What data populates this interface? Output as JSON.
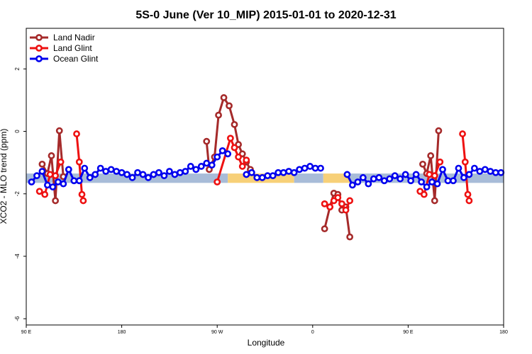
{
  "chart_data": {
    "type": "line",
    "title": "5S-0 June (Ver 10_MIP)   2015-01-01 to 2020-12-31",
    "xlabel": "Longitude",
    "ylabel": "XCO2 - MLO trend (ppm)",
    "xlim": [
      0,
      360
    ],
    "ylim": [
      -6.2,
      3.3
    ],
    "x_ticks": [
      {
        "value": 0,
        "label": "90 E"
      },
      {
        "value": 72,
        "label": "180"
      },
      {
        "value": 144,
        "label": "90 W"
      },
      {
        "value": 216,
        "label": "0"
      },
      {
        "value": 288,
        "label": "90 E"
      },
      {
        "value": 360,
        "label": "180"
      }
    ],
    "y_ticks": [
      -6,
      -4,
      -2,
      0,
      2
    ],
    "grid": false,
    "legend_position": "top-left",
    "band": {
      "lower": -1.65,
      "upper": -1.35,
      "segments": [
        {
          "x0": 0,
          "x1": 152,
          "color": "#a8bcd8"
        },
        {
          "x0": 152,
          "x1": 202,
          "color": "#f7d078"
        },
        {
          "x0": 202,
          "x1": 224,
          "color": "#a8bcd8"
        },
        {
          "x0": 224,
          "x1": 244,
          "color": "#f7d078"
        },
        {
          "x0": 244,
          "x1": 360,
          "color": "#a8bcd8"
        }
      ]
    },
    "series": [
      {
        "name": "Land Nadir",
        "color": "#a52a2a",
        "segments": [
          {
            "x": [
              12,
              16,
              19,
              22,
              25,
              28
            ],
            "y": [
              -1.05,
              -1.35,
              -0.78,
              -2.22,
              0.02,
              -1.45
            ]
          },
          {
            "x": [
              136,
              138,
              142,
              145,
              149,
              153,
              157,
              160,
              163,
              166,
              169
            ],
            "y": [
              -0.32,
              -1.22,
              -0.82,
              0.52,
              1.08,
              0.82,
              0.22,
              -0.42,
              -0.72,
              -0.98,
              -1.22
            ]
          },
          {
            "x": [
              225,
              229,
              232,
              235,
              238,
              241,
              244
            ],
            "y": [
              -3.12,
              -2.42,
              -1.98,
              -2.02,
              -2.52,
              -2.42,
              -3.38
            ]
          },
          {
            "x": [
              299,
              302,
              305,
              308,
              311
            ],
            "y": [
              -1.05,
              -1.35,
              -0.78,
              -2.22,
              0.02
            ]
          }
        ]
      },
      {
        "name": "Land Glint",
        "color": "#ee1111",
        "segments": [
          {
            "x": [
              10,
              14,
              18,
              22,
              26
            ],
            "y": [
              -1.92,
              -2.02,
              -1.38,
              -1.42,
              -0.98
            ]
          },
          {
            "x": [
              38,
              40,
              42,
              43
            ],
            "y": [
              -0.08,
              -0.98,
              -2.02,
              -2.22
            ]
          },
          {
            "x": [
              144,
              154,
              157,
              160,
              163,
              166
            ],
            "y": [
              -1.62,
              -0.22,
              -0.52,
              -0.82,
              -1.12,
              -0.92
            ]
          },
          {
            "x": [
              225,
              229,
              232,
              235,
              238,
              241,
              244
            ],
            "y": [
              -2.32,
              -2.42,
              -2.22,
              -2.12,
              -2.32,
              -2.52,
              -2.22
            ]
          },
          {
            "x": [
              297,
              300,
              304,
              308,
              312
            ],
            "y": [
              -1.92,
              -2.02,
              -1.38,
              -1.42,
              -0.98
            ]
          },
          {
            "x": [
              329,
              331,
              333,
              334
            ],
            "y": [
              -0.08,
              -0.98,
              -2.02,
              -2.22
            ]
          }
        ]
      },
      {
        "name": "Ocean Glint",
        "color": "#0000ee",
        "segments": [
          {
            "x": [
              4,
              8,
              12,
              16,
              20,
              24,
              28,
              32,
              36,
              40,
              44,
              48,
              52,
              56,
              60,
              64,
              68,
              72,
              76,
              80,
              84,
              88,
              92,
              96,
              100,
              104,
              108,
              112,
              116,
              120,
              124,
              128,
              132,
              136,
              140,
              144,
              148,
              152
            ],
            "y": [
              -1.62,
              -1.42,
              -1.28,
              -1.72,
              -1.78,
              -1.62,
              -1.68,
              -1.22,
              -1.58,
              -1.58,
              -1.18,
              -1.48,
              -1.38,
              -1.18,
              -1.28,
              -1.22,
              -1.28,
              -1.32,
              -1.38,
              -1.48,
              -1.32,
              -1.38,
              -1.48,
              -1.38,
              -1.32,
              -1.42,
              -1.28,
              -1.38,
              -1.32,
              -1.28,
              -1.12,
              -1.22,
              -1.12,
              -1.02,
              -1.08,
              -0.82,
              -0.62,
              -0.72
            ]
          },
          {
            "x": [
              166,
              170,
              174,
              178,
              182,
              186,
              190,
              194,
              198,
              202,
              206,
              210,
              214,
              218,
              222
            ],
            "y": [
              -1.38,
              -1.32,
              -1.48,
              -1.48,
              -1.42,
              -1.42,
              -1.32,
              -1.32,
              -1.28,
              -1.32,
              -1.22,
              -1.18,
              -1.12,
              -1.18,
              -1.18
            ]
          },
          {
            "x": [
              242,
              246,
              250,
              254,
              258,
              262,
              266,
              270,
              274,
              278,
              282,
              286,
              290,
              294,
              298,
              302,
              306,
              310,
              314,
              318,
              322,
              326,
              330,
              334,
              338,
              342,
              346,
              350,
              354,
              358
            ],
            "y": [
              -1.38,
              -1.72,
              -1.62,
              -1.48,
              -1.68,
              -1.52,
              -1.48,
              -1.58,
              -1.52,
              -1.42,
              -1.52,
              -1.38,
              -1.58,
              -1.38,
              -1.62,
              -1.78,
              -1.62,
              -1.68,
              -1.22,
              -1.58,
              -1.58,
              -1.18,
              -1.48,
              -1.38,
              -1.18,
              -1.28,
              -1.22,
              -1.28,
              -1.32,
              -1.32
            ]
          }
        ]
      }
    ]
  }
}
